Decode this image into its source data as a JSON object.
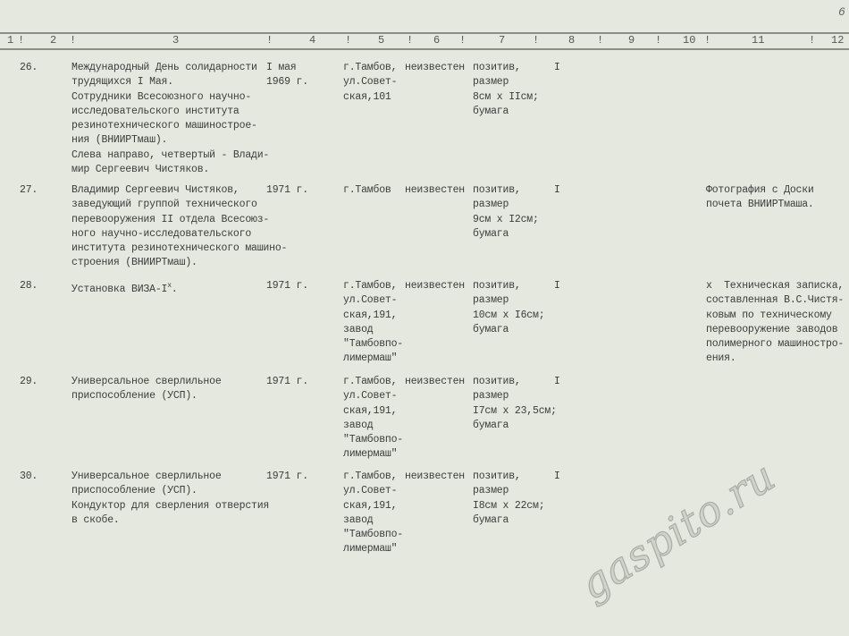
{
  "page_number": "6",
  "header": {
    "columns": [
      "1",
      "2",
      "3",
      "4",
      "5",
      "6",
      "7",
      "8",
      "9",
      "10",
      "11",
      "12"
    ]
  },
  "rows": [
    {
      "num": "26.",
      "description": "Международный День солидарности\nтрудящихся I Мая.\nСотрудники Всесоюзного научно-\nисследовательского института\nрезинотехнического машинострое-\nния (ВНИИРТмаш).\nСлева направо, четвертый - Влади-\nмир Сергеевич Чистяков.",
      "date": "I мая\n1969 г.",
      "place": "г.Тамбов,\nул.Совет-\nская,101",
      "author": "неизвестен",
      "type": "позитив,\nразмер\n8см х IIсм;\nбумага",
      "count": "I",
      "note": ""
    },
    {
      "num": "27.",
      "description": "Владимир Сергеевич Чистяков,\nзаведующий группой технического\nперевооружения II отдела Всесоюз-\nного научно-исследовательского\nинститута резинотехнического машино-\nстроения (ВНИИРТмаш).",
      "date": "1971 г.",
      "place": "г.Тамбов",
      "author": "неизвестен",
      "type": "позитив,\nразмер\n9см х I2см;\nбумага",
      "count": "I",
      "note": "Фотография с Доски\nпочета ВНИИРТмаша."
    },
    {
      "num": "28.",
      "description": "Установка ВИЗА-I",
      "sup": "x",
      "date_after": ".",
      "date": "1971 г.",
      "place": "г.Тамбов,\nул.Совет-\nская,191,\nзавод\n\"Тамбовпо-\nлимермаш\"",
      "author": "неизвестен",
      "type": "позитив,\nразмер\n10см х I6см;\nбумага",
      "count": "I",
      "note": "х  Техническая записка,\nсоставленная В.С.Чистя-\nковым по техническому\nперевооружение заводов\nполимерного машиностро-\nения."
    },
    {
      "num": "29.",
      "description": "Универсальное сверлильное\nприспособление (УСП).",
      "date": "1971 г.",
      "place": "г.Тамбов,\nул.Совет-\nская,191,\nзавод\n\"Тамбовпо-\nлимермаш\"",
      "author": "неизвестен",
      "type": "позитив,\nразмер\nI7см х 23,5см;\nбумага",
      "count": "I",
      "note": ""
    },
    {
      "num": "30.",
      "description": "Универсальное сверлильное\nприспособление (УСП).\nКондуктор для сверления отверстия\nв скобе.",
      "date": "1971 г.",
      "place": "г.Тамбов,\nул.Совет-\nская,191,\nзавод\n\"Тамбовпо-\nлимермаш\"",
      "author": "неизвестен",
      "type": "позитив,\nразмер\nI8см х 22см;\nбумага",
      "count": "I",
      "note": ""
    }
  ],
  "watermark": "gaspito.ru",
  "colors": {
    "paper": "#e4e8df",
    "ink": "#3a3d3a"
  }
}
